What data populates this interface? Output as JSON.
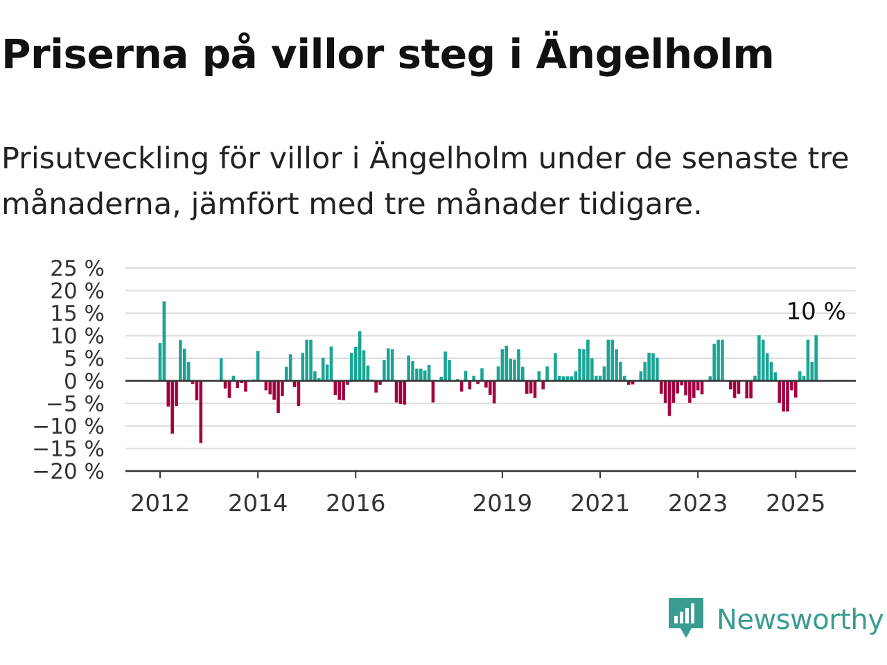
{
  "title": "Priserna på villor steg i Ängelholm",
  "subtitle": "Prisutveckling för villor i Ängelholm under de senaste tre månaderna, jämfört med tre månader tidigare.",
  "brand": {
    "name": "Newsworthy",
    "icon": "newsworthy-logo-icon",
    "color": "#3a9c90"
  },
  "colors": {
    "positive": "#1aa595",
    "negative": "#a3003f",
    "grid": "#dddddd",
    "axis": "#333333"
  },
  "chart_data": {
    "type": "bar",
    "ylim": [
      -20,
      25
    ],
    "yticks": [
      25,
      20,
      15,
      10,
      5,
      0,
      -5,
      -10,
      -15,
      -20
    ],
    "ytick_labels": [
      "25 %",
      "20 %",
      "15 %",
      "10 %",
      "5 %",
      "0 %",
      "−5 %",
      "−10 %",
      "−15 %",
      "−20 %"
    ],
    "xticks": [
      2012,
      2014,
      2016,
      2019,
      2021,
      2023,
      2025
    ],
    "xtick_labels": [
      "2012",
      "2014",
      "2016",
      "2019",
      "2021",
      "2023",
      "2025"
    ],
    "x_start": "2012-01",
    "last_label": "10 %",
    "values": [
      8.4,
      17.6,
      -5.7,
      -11.7,
      -5.6,
      9.0,
      7.1,
      4.2,
      -0.7,
      -4.3,
      -13.8,
      0,
      0,
      0,
      0,
      5.0,
      -1.7,
      -3.8,
      1.1,
      -1.6,
      -0.5,
      -2.4,
      0.2,
      0.3,
      6.6,
      -0.2,
      -2.1,
      -3.0,
      -4.2,
      -7.1,
      -3.4,
      3.1,
      5.9,
      -1.4,
      -5.6,
      6.2,
      9.1,
      9.1,
      2.1,
      0.6,
      5.1,
      3.6,
      7.6,
      -3.1,
      -4.2,
      -4.3,
      -0.9,
      6.2,
      7.5,
      11.0,
      6.8,
      3.4,
      0.3,
      -2.6,
      -0.9,
      4.6,
      7.2,
      7.0,
      -4.8,
      -5.1,
      -5.3,
      5.6,
      4.4,
      2.7,
      2.7,
      2.3,
      3.5,
      -4.8,
      -0.2,
      0.9,
      6.5,
      4.6,
      -0.1,
      0.4,
      -2.4,
      2.2,
      -1.9,
      1.1,
      -0.7,
      2.8,
      -1.5,
      -3.1,
      -5.0,
      3.2,
      7.0,
      7.8,
      4.9,
      4.7,
      7.0,
      3.1,
      -2.9,
      -2.8,
      -3.8,
      2.1,
      -1.9,
      3.2,
      0,
      6.1,
      1.1,
      1.0,
      1.0,
      1.0,
      2.1,
      7.1,
      7.0,
      9.1,
      5.0,
      1.1,
      1.1,
      3.2,
      9.1,
      9.1,
      7.0,
      4.2,
      1.1,
      -0.9,
      -0.8,
      0,
      2.1,
      4.2,
      6.2,
      6.1,
      5.1,
      -2.9,
      -4.9,
      -7.8,
      -4.9,
      -2.8,
      -1.0,
      -3.2,
      -4.9,
      -3.8,
      -2.1,
      -3.0,
      0,
      1.0,
      8.2,
      9.1,
      9.1,
      0,
      -1.9,
      -3.8,
      -2.9,
      0,
      -3.9,
      -3.9,
      1.1,
      10.1,
      9.1,
      6.1,
      4.2,
      1.9,
      -4.9,
      -6.8,
      -6.8,
      -2.1,
      -3.7,
      2.1,
      1.1,
      9.1,
      4.2,
      10.1
    ]
  }
}
